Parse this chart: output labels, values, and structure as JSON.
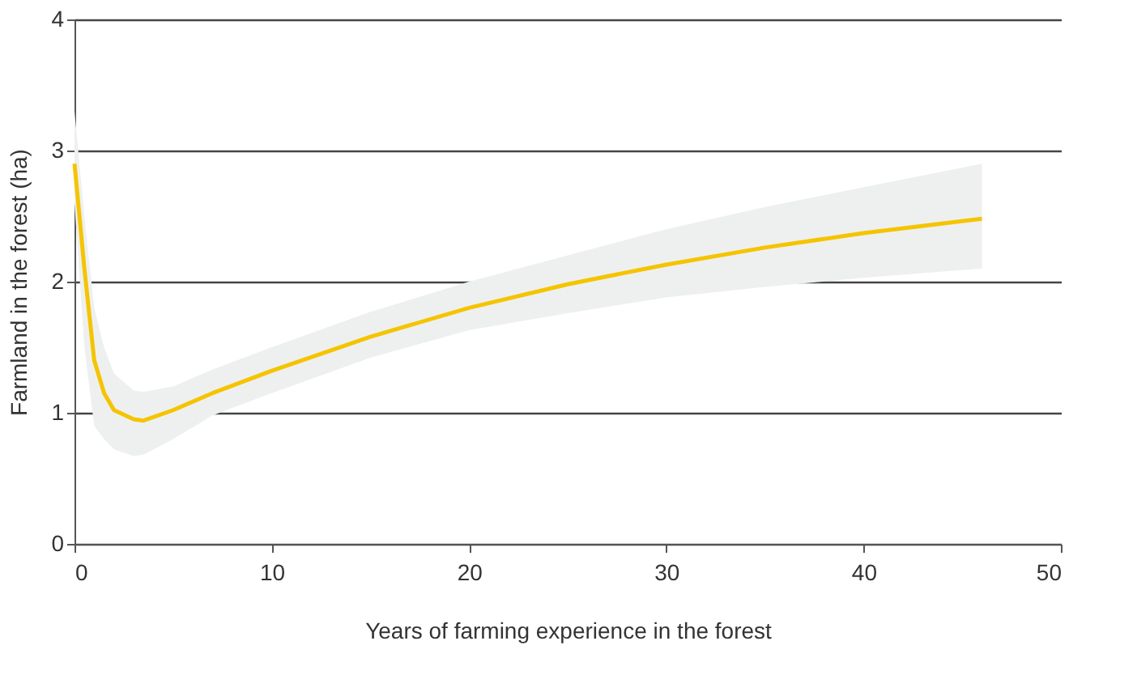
{
  "chart_data": {
    "type": "line",
    "xlabel": "Years of farming experience in the forest",
    "ylabel": "Farmland in the forest (ha)",
    "xlim": [
      0,
      50
    ],
    "xticks": [
      0,
      10,
      20,
      30,
      40,
      50
    ],
    "ylim": [
      0,
      4
    ],
    "yticks": [
      0,
      1,
      2,
      3,
      4
    ],
    "grid": "y",
    "marker": "none",
    "line_style": "solid",
    "series": [
      {
        "color": "#f5c400",
        "x": [
          0,
          0.5,
          1,
          1.5,
          2,
          3,
          3.5,
          5,
          7,
          10,
          15,
          20,
          25,
          30,
          35,
          40,
          46
        ],
        "values": [
          2.9,
          2.1,
          1.4,
          1.15,
          1.02,
          0.95,
          0.94,
          1.02,
          1.15,
          1.32,
          1.58,
          1.8,
          1.98,
          2.13,
          2.26,
          2.37,
          2.48
        ],
        "lower": [
          2.6,
          1.5,
          0.9,
          0.8,
          0.72,
          0.67,
          0.68,
          0.8,
          0.98,
          1.15,
          1.42,
          1.63,
          1.76,
          1.88,
          1.96,
          2.03,
          2.1
        ],
        "upper": [
          3.3,
          2.5,
          1.8,
          1.5,
          1.3,
          1.17,
          1.16,
          1.2,
          1.33,
          1.5,
          1.77,
          2.0,
          2.2,
          2.4,
          2.57,
          2.72,
          2.9
        ]
      }
    ]
  }
}
